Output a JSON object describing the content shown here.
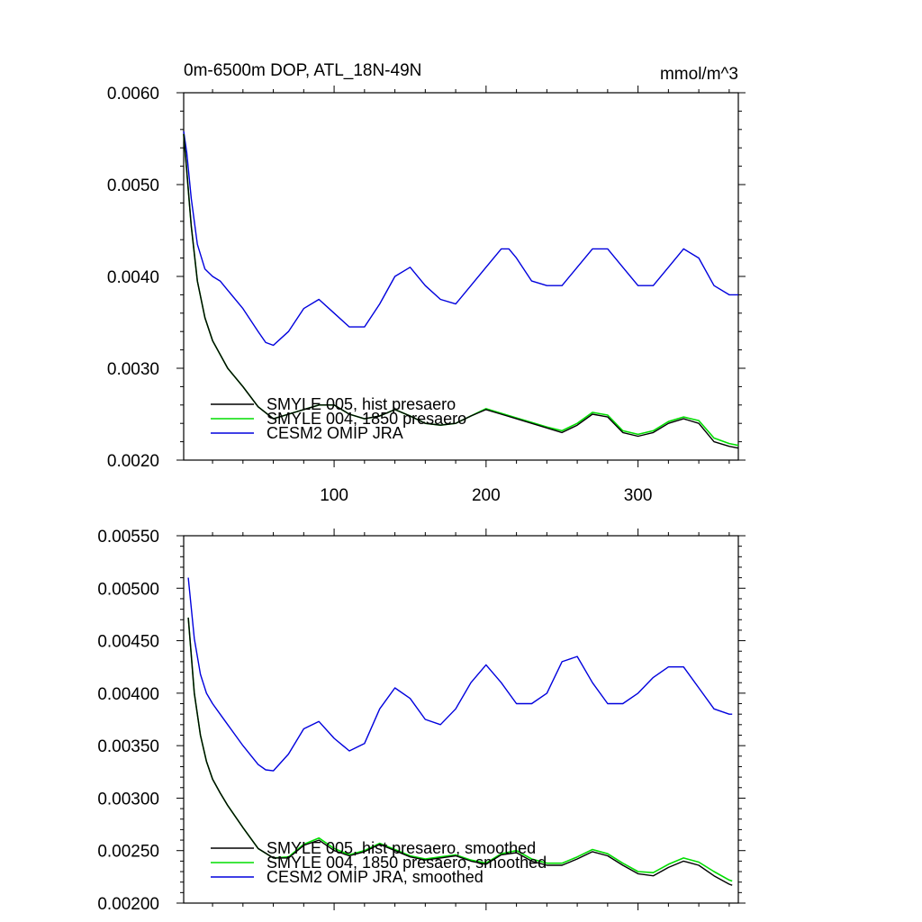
{
  "figure": {
    "title_left": "0m-6500m DOP, ATL_18N-49N",
    "title_right": "mmol/m^3"
  },
  "chart_data": [
    {
      "type": "line",
      "name": "raw",
      "title": "0m-6500m DOP, ATL_18N-49N",
      "units": "mmol/m^3",
      "xlim": [
        1,
        366
      ],
      "ylim": [
        0.002,
        0.006
      ],
      "xticks": [
        100,
        200,
        300
      ],
      "xtick_labels": [
        "100",
        "200",
        "300"
      ],
      "yticks": [
        0.002,
        0.003,
        0.004,
        0.005,
        0.006
      ],
      "ytick_labels": [
        "0.0020",
        "0.0030",
        "0.0040",
        "0.0050",
        "0.0060"
      ],
      "legend_position": "bottom-left",
      "series": [
        {
          "name": "SMYLE 005, hist presaero",
          "color": "#000000",
          "x": [
            1,
            3,
            6,
            10,
            15,
            20,
            25,
            30,
            40,
            50,
            60,
            70,
            80,
            90,
            100,
            110,
            120,
            130,
            140,
            150,
            160,
            170,
            180,
            190,
            200,
            210,
            220,
            230,
            240,
            250,
            260,
            270,
            280,
            290,
            300,
            310,
            320,
            330,
            340,
            350,
            360,
            366
          ],
          "y": [
            0.00555,
            0.00515,
            0.00455,
            0.00395,
            0.00355,
            0.0033,
            0.00315,
            0.003,
            0.0028,
            0.00258,
            0.00245,
            0.0025,
            0.00255,
            0.0026,
            0.0026,
            0.0025,
            0.00245,
            0.00248,
            0.00255,
            0.00248,
            0.0024,
            0.00238,
            0.0024,
            0.00248,
            0.00255,
            0.0025,
            0.00245,
            0.0024,
            0.00235,
            0.0023,
            0.00238,
            0.0025,
            0.00247,
            0.0023,
            0.00226,
            0.0023,
            0.0024,
            0.00245,
            0.0024,
            0.0022,
            0.00215,
            0.00213
          ]
        },
        {
          "name": "SMYLE 004, 1850 presaero",
          "color": "#00dd00",
          "x": [
            1,
            3,
            6,
            10,
            15,
            20,
            25,
            30,
            40,
            50,
            60,
            70,
            80,
            90,
            100,
            110,
            120,
            130,
            140,
            150,
            160,
            170,
            180,
            190,
            200,
            210,
            220,
            230,
            240,
            250,
            260,
            270,
            280,
            290,
            300,
            310,
            320,
            330,
            340,
            350,
            360,
            366
          ],
          "y": [
            0.00555,
            0.00515,
            0.00455,
            0.00395,
            0.00355,
            0.0033,
            0.00315,
            0.003,
            0.0028,
            0.00258,
            0.00245,
            0.0025,
            0.00255,
            0.0026,
            0.0026,
            0.0025,
            0.00245,
            0.00248,
            0.00255,
            0.00248,
            0.0024,
            0.00238,
            0.0024,
            0.00248,
            0.00256,
            0.00251,
            0.00246,
            0.00241,
            0.00236,
            0.00232,
            0.0024,
            0.00252,
            0.00249,
            0.00232,
            0.00228,
            0.00232,
            0.00242,
            0.00247,
            0.00243,
            0.00224,
            0.00218,
            0.00216
          ]
        },
        {
          "name": "CESM2 OMIP JRA",
          "color": "#0000dd",
          "x": [
            1,
            3,
            6,
            10,
            15,
            20,
            25,
            30,
            40,
            50,
            55,
            60,
            70,
            80,
            90,
            100,
            110,
            120,
            130,
            140,
            150,
            160,
            170,
            180,
            190,
            200,
            210,
            215,
            220,
            230,
            240,
            250,
            260,
            270,
            280,
            290,
            300,
            310,
            320,
            330,
            340,
            350,
            360,
            366
          ],
          "y": [
            0.00558,
            0.00535,
            0.00485,
            0.00435,
            0.00408,
            0.004,
            0.00395,
            0.00385,
            0.00365,
            0.0034,
            0.00328,
            0.00325,
            0.0034,
            0.00365,
            0.00375,
            0.0036,
            0.00345,
            0.00345,
            0.0037,
            0.004,
            0.0041,
            0.0039,
            0.00375,
            0.0037,
            0.0039,
            0.0041,
            0.0043,
            0.0043,
            0.0042,
            0.00395,
            0.0039,
            0.0039,
            0.0041,
            0.0043,
            0.0043,
            0.0041,
            0.0039,
            0.0039,
            0.0041,
            0.0043,
            0.0042,
            0.0039,
            0.0038,
            0.0038
          ]
        }
      ]
    },
    {
      "type": "line",
      "name": "smoothed",
      "xlim": [
        1,
        366
      ],
      "ylim": [
        0.002,
        0.0055
      ],
      "xticks": [
        100,
        200,
        300
      ],
      "xtick_labels": [
        "",
        "",
        ""
      ],
      "yticks": [
        0.002,
        0.0025,
        0.003,
        0.0035,
        0.004,
        0.0045,
        0.005,
        0.0055
      ],
      "ytick_labels": [
        "0.00200",
        "0.00250",
        "0.00300",
        "0.00350",
        "0.00400",
        "0.00450",
        "0.00500",
        "0.00550"
      ],
      "legend_position": "bottom-left",
      "series": [
        {
          "name": "SMYLE 005, hist presaero, smoothed",
          "color": "#000000",
          "x": [
            4,
            8,
            12,
            16,
            20,
            25,
            30,
            40,
            50,
            60,
            70,
            80,
            90,
            100,
            110,
            120,
            130,
            140,
            150,
            160,
            170,
            180,
            190,
            200,
            210,
            220,
            230,
            240,
            250,
            260,
            270,
            280,
            290,
            300,
            310,
            320,
            330,
            340,
            350,
            360,
            362
          ],
          "y": [
            0.00472,
            0.004,
            0.0036,
            0.00335,
            0.00318,
            0.00305,
            0.00293,
            0.00272,
            0.00252,
            0.00243,
            0.00243,
            0.00255,
            0.0026,
            0.0025,
            0.00245,
            0.00249,
            0.00256,
            0.0025,
            0.00244,
            0.00241,
            0.00243,
            0.00245,
            0.0024,
            0.00237,
            0.00246,
            0.00248,
            0.0024,
            0.00236,
            0.00236,
            0.00242,
            0.00249,
            0.00245,
            0.00236,
            0.00228,
            0.00226,
            0.00234,
            0.0024,
            0.00236,
            0.00226,
            0.00218,
            0.00217
          ]
        },
        {
          "name": "SMYLE 004, 1850 presaero, smoothed",
          "color": "#00dd00",
          "x": [
            4,
            8,
            12,
            16,
            20,
            25,
            30,
            40,
            50,
            60,
            70,
            80,
            90,
            100,
            110,
            120,
            130,
            140,
            150,
            160,
            170,
            180,
            190,
            200,
            210,
            220,
            230,
            240,
            250,
            260,
            270,
            280,
            290,
            300,
            310,
            320,
            330,
            340,
            350,
            360,
            362
          ],
          "y": [
            0.00472,
            0.004,
            0.0036,
            0.00335,
            0.00318,
            0.00305,
            0.00293,
            0.00272,
            0.00252,
            0.00243,
            0.00244,
            0.00256,
            0.00262,
            0.00252,
            0.00246,
            0.0025,
            0.00257,
            0.00251,
            0.00245,
            0.00242,
            0.00244,
            0.00246,
            0.00241,
            0.00238,
            0.00247,
            0.0025,
            0.00242,
            0.00238,
            0.00238,
            0.00244,
            0.00251,
            0.00247,
            0.00238,
            0.0023,
            0.00229,
            0.00237,
            0.00243,
            0.00239,
            0.0023,
            0.00222,
            0.00221
          ]
        },
        {
          "name": "CESM2 OMIP JRA, smoothed",
          "color": "#0000dd",
          "x": [
            4,
            8,
            12,
            16,
            20,
            25,
            30,
            40,
            50,
            55,
            60,
            70,
            80,
            90,
            100,
            110,
            120,
            130,
            140,
            150,
            160,
            170,
            180,
            190,
            200,
            210,
            220,
            230,
            240,
            250,
            260,
            270,
            280,
            290,
            300,
            310,
            320,
            330,
            340,
            350,
            360,
            362
          ],
          "y": [
            0.0051,
            0.00452,
            0.00418,
            0.004,
            0.0039,
            0.0038,
            0.0037,
            0.0035,
            0.00332,
            0.00327,
            0.00326,
            0.00342,
            0.00366,
            0.00373,
            0.00357,
            0.00345,
            0.00352,
            0.00385,
            0.00405,
            0.00395,
            0.00375,
            0.0037,
            0.00385,
            0.0041,
            0.00427,
            0.0041,
            0.0039,
            0.0039,
            0.004,
            0.0043,
            0.00435,
            0.0041,
            0.0039,
            0.0039,
            0.004,
            0.00415,
            0.00425,
            0.00425,
            0.00405,
            0.00385,
            0.0038,
            0.0038
          ]
        }
      ]
    }
  ]
}
